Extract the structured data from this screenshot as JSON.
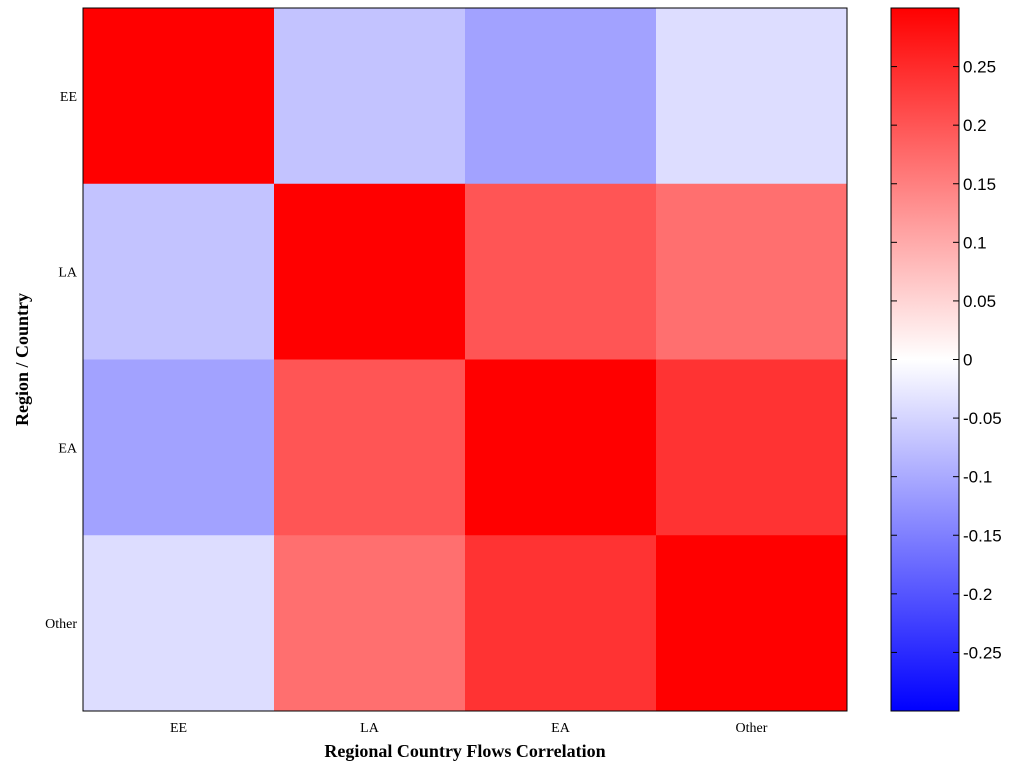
{
  "chart_data": {
    "type": "heatmap",
    "title": "",
    "xlabel": "Regional Country Flows Correlation",
    "ylabel": "Region / Country",
    "x_categories": [
      "EE",
      "LA",
      "EA",
      "Other"
    ],
    "y_categories": [
      "EE",
      "LA",
      "EA",
      "Other"
    ],
    "values": [
      [
        0.3,
        -0.07,
        -0.11,
        -0.04
      ],
      [
        -0.07,
        0.3,
        0.2,
        0.17
      ],
      [
        -0.11,
        0.2,
        0.3,
        0.24
      ],
      [
        -0.04,
        0.17,
        0.24,
        0.3
      ]
    ],
    "colorbar": {
      "range": [
        -0.3,
        0.3
      ],
      "ticks": [
        0.25,
        0.2,
        0.15,
        0.1,
        0.05,
        0,
        -0.05,
        -0.1,
        -0.15,
        -0.2,
        -0.25
      ],
      "tick_labels": [
        "0.25",
        "0.2",
        "0.15",
        "0.1",
        "0.05",
        "0",
        "-0.05",
        "-0.1",
        "-0.15",
        "-0.2",
        "-0.25"
      ],
      "colormap": "blue-white-red"
    },
    "colors": {
      "low": "#0000ff",
      "mid": "#ffffff",
      "high": "#ff0000"
    }
  }
}
